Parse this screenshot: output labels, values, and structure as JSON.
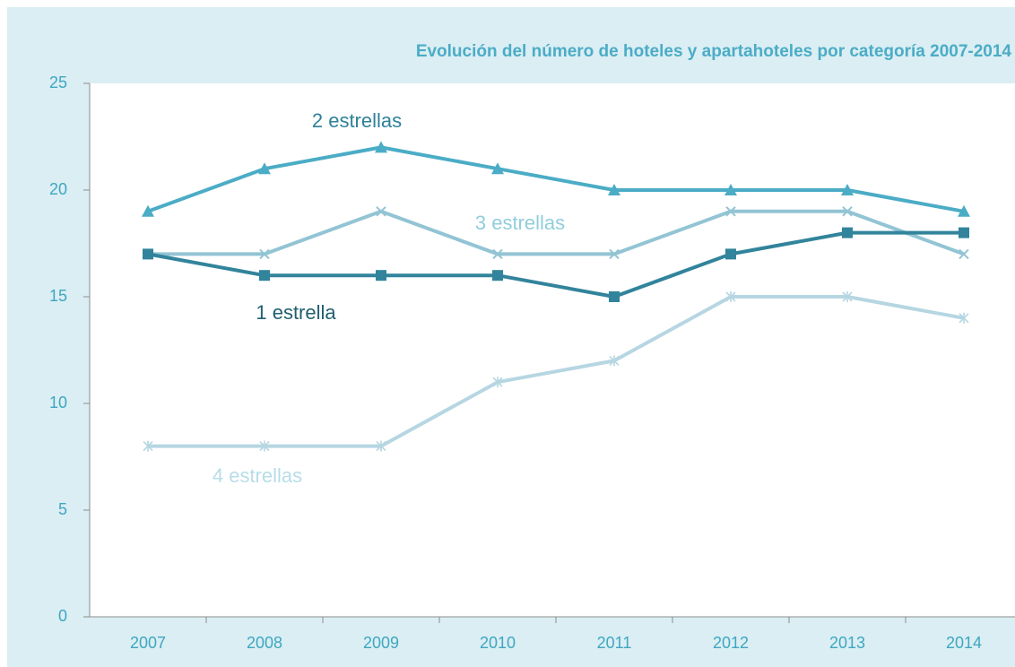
{
  "chart_data": {
    "type": "line",
    "title": "Evolución del número de hoteles y apartahoteles por categoría 2007-2014",
    "categories": [
      "2007",
      "2008",
      "2009",
      "2010",
      "2011",
      "2012",
      "2013",
      "2014"
    ],
    "series": [
      {
        "name": "1 estrella",
        "color": "#31849b",
        "marker": "square",
        "values": [
          17,
          16,
          16,
          16,
          15,
          17,
          18,
          18
        ]
      },
      {
        "name": "2 estrellas",
        "color": "#4bacc6",
        "marker": "triangle",
        "values": [
          19,
          21,
          22,
          21,
          20,
          20,
          20,
          19
        ]
      },
      {
        "name": "3 estrellas",
        "color": "#92c4d4",
        "marker": "x",
        "values": [
          17,
          17,
          19,
          17,
          17,
          19,
          19,
          17
        ]
      },
      {
        "name": "4 estrellas",
        "color": "#b6d6e2",
        "marker": "star",
        "values": [
          8,
          8,
          8,
          11,
          12,
          15,
          15,
          14
        ]
      }
    ],
    "ylim": [
      0,
      25
    ],
    "yticks": [
      0,
      5,
      10,
      15,
      20,
      25
    ],
    "grid": false
  }
}
